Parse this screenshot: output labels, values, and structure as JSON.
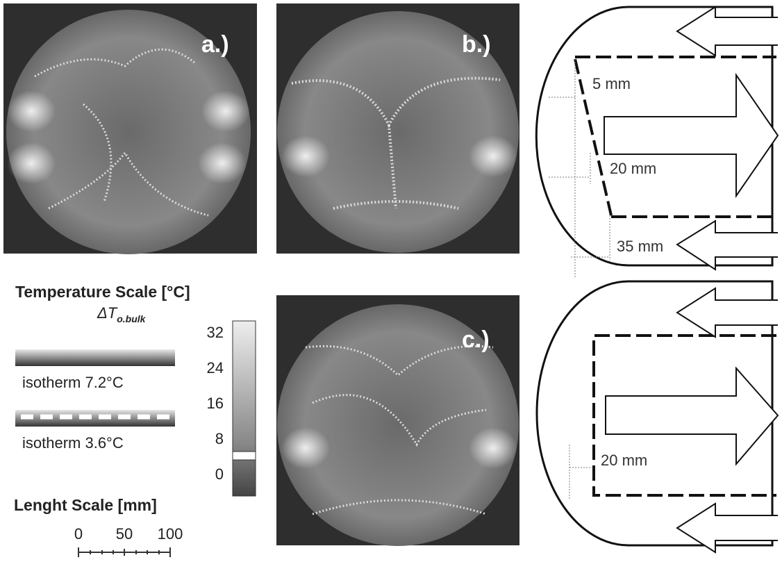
{
  "panels": {
    "a": "a.)",
    "b": "b.)",
    "c": "c.)"
  },
  "temperature_scale": {
    "title": "Temperature Scale [°C]",
    "symbol": "ΔT",
    "subscript": "o.bulk",
    "ticks": [
      "32",
      "24",
      "16",
      "8",
      "0"
    ],
    "isotherms": [
      "isotherm 7.2°C",
      "isotherm 3.6°C"
    ]
  },
  "length_scale": {
    "title": "Lenght Scale [mm]",
    "ticks": [
      "0",
      "50",
      "100"
    ]
  },
  "diagram_top": {
    "dims": [
      "5 mm",
      "20 mm",
      "35 mm"
    ]
  },
  "diagram_bottom": {
    "dims": [
      "20 mm"
    ]
  }
}
